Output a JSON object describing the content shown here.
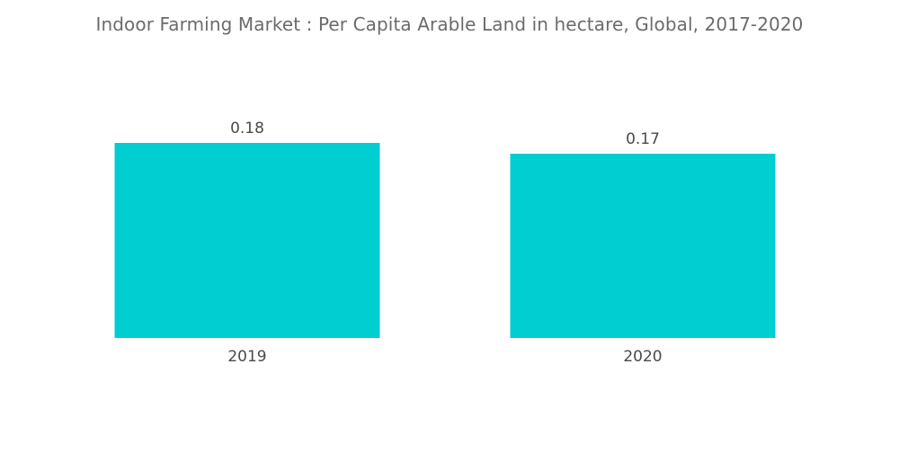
{
  "chart_data": {
    "type": "bar",
    "title": "Indoor Farming Market : Per Capita Arable Land in hectare, Global, 2017-2020",
    "categories": [
      "2019",
      "2020"
    ],
    "values": [
      0.18,
      0.17
    ],
    "value_labels": [
      "0.18",
      "0.17"
    ],
    "xlabel": "",
    "ylabel": "",
    "ylim": [
      0,
      0.18
    ],
    "grid": false,
    "legend": "none",
    "bar_color": "#00ced1"
  }
}
